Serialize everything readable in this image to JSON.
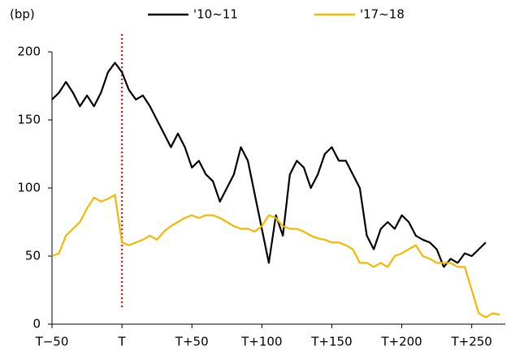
{
  "chart_data": {
    "type": "line",
    "y_label": "(bp)",
    "x": [
      -50,
      -45,
      -40,
      -35,
      -30,
      -25,
      -20,
      -15,
      -10,
      -5,
      0,
      5,
      10,
      15,
      20,
      25,
      30,
      35,
      40,
      45,
      50,
      55,
      60,
      65,
      70,
      75,
      80,
      85,
      90,
      95,
      100,
      105,
      110,
      115,
      120,
      125,
      130,
      135,
      140,
      145,
      150,
      155,
      160,
      165,
      170,
      175,
      180,
      185,
      190,
      195,
      200,
      205,
      210,
      215,
      220,
      225,
      230,
      235,
      240,
      245,
      250,
      255,
      260,
      265,
      270
    ],
    "series": [
      {
        "name": "'10~11",
        "color": "#000000",
        "values": [
          165,
          170,
          178,
          170,
          160,
          168,
          160,
          170,
          185,
          192,
          185,
          172,
          165,
          168,
          160,
          150,
          140,
          130,
          140,
          130,
          115,
          120,
          110,
          105,
          90,
          100,
          110,
          130,
          120,
          95,
          70,
          45,
          80,
          65,
          110,
          120,
          115,
          100,
          110,
          125,
          130,
          120,
          120,
          110,
          100,
          65,
          55,
          70,
          75,
          70,
          80,
          75,
          65,
          62,
          60,
          55,
          42,
          48,
          45,
          52,
          50,
          55,
          60,
          null,
          null
        ]
      },
      {
        "name": "'17~18",
        "color": "#f5b800",
        "values": [
          50,
          52,
          65,
          70,
          75,
          85,
          93,
          90,
          92,
          95,
          60,
          58,
          60,
          62,
          65,
          62,
          68,
          72,
          75,
          78,
          80,
          78,
          80,
          80,
          78,
          75,
          72,
          70,
          70,
          68,
          72,
          80,
          78,
          72,
          70,
          70,
          68,
          65,
          63,
          62,
          60,
          60,
          58,
          55,
          45,
          45,
          42,
          45,
          42,
          50,
          52,
          55,
          58,
          50,
          48,
          45,
          45,
          45,
          42,
          42,
          25,
          8,
          5,
          8,
          7
        ]
      }
    ],
    "xlim": [
      -50,
      274
    ],
    "ylim": [
      0,
      200
    ],
    "xticks": [
      {
        "value": -50,
        "label": "T−50"
      },
      {
        "value": 0,
        "label": "T"
      },
      {
        "value": 50,
        "label": "T+50"
      },
      {
        "value": 100,
        "label": "T+100"
      },
      {
        "value": 150,
        "label": "T+150"
      },
      {
        "value": 200,
        "label": "T+200"
      },
      {
        "value": 250,
        "label": "T+250"
      }
    ],
    "yticks": [
      0,
      50,
      100,
      150,
      200
    ],
    "reference_line_x": 0,
    "reference_line_color": "#e02020",
    "grid": false,
    "legend_position": "top"
  }
}
